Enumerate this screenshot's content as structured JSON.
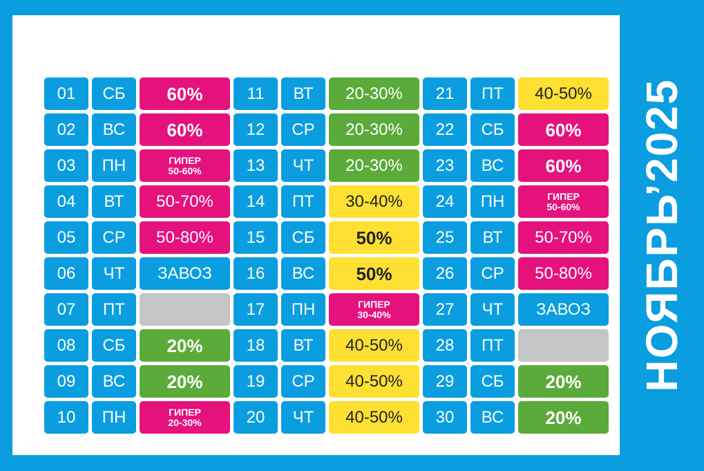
{
  "title": "НОЯБРЬ’2025",
  "colors": {
    "background": "#0a9ee0",
    "magenta": "#e5127d",
    "green": "#5aab3a",
    "yellow": "#fde031",
    "gray": "#c4c5c7"
  },
  "days": [
    {
      "date": "01",
      "weekday": "СБ",
      "discount": "60%",
      "type": "magenta-bold"
    },
    {
      "date": "02",
      "weekday": "ВС",
      "discount": "60%",
      "type": "magenta-bold"
    },
    {
      "date": "03",
      "weekday": "ПН",
      "discount": "ГИПЕР 50-60%",
      "type": "hyper"
    },
    {
      "date": "04",
      "weekday": "ВТ",
      "discount": "50-70%",
      "type": "magenta"
    },
    {
      "date": "05",
      "weekday": "СР",
      "discount": "50-80%",
      "type": "magenta"
    },
    {
      "date": "06",
      "weekday": "ЧТ",
      "discount": "ЗАВОЗ",
      "type": "blue"
    },
    {
      "date": "07",
      "weekday": "ПТ",
      "discount": "",
      "type": "gray"
    },
    {
      "date": "08",
      "weekday": "СБ",
      "discount": "20%",
      "type": "green-bold"
    },
    {
      "date": "09",
      "weekday": "ВС",
      "discount": "20%",
      "type": "green-bold"
    },
    {
      "date": "10",
      "weekday": "ПН",
      "discount": "ГИПЕР 20-30%",
      "type": "hyper"
    },
    {
      "date": "11",
      "weekday": "ВТ",
      "discount": "20-30%",
      "type": "green"
    },
    {
      "date": "12",
      "weekday": "СР",
      "discount": "20-30%",
      "type": "green"
    },
    {
      "date": "13",
      "weekday": "ЧТ",
      "discount": "20-30%",
      "type": "green"
    },
    {
      "date": "14",
      "weekday": "ПТ",
      "discount": "30-40%",
      "type": "yellow"
    },
    {
      "date": "15",
      "weekday": "СБ",
      "discount": "50%",
      "type": "yellow-bold"
    },
    {
      "date": "16",
      "weekday": "ВС",
      "discount": "50%",
      "type": "yellow-bold"
    },
    {
      "date": "17",
      "weekday": "ПН",
      "discount": "ГИПЕР 30-40%",
      "type": "hyper"
    },
    {
      "date": "18",
      "weekday": "ВТ",
      "discount": "40-50%",
      "type": "yellow"
    },
    {
      "date": "19",
      "weekday": "СР",
      "discount": "40-50%",
      "type": "yellow"
    },
    {
      "date": "20",
      "weekday": "ЧТ",
      "discount": "40-50%",
      "type": "yellow"
    },
    {
      "date": "21",
      "weekday": "ПТ",
      "discount": "40-50%",
      "type": "yellow"
    },
    {
      "date": "22",
      "weekday": "СБ",
      "discount": "60%",
      "type": "magenta-bold"
    },
    {
      "date": "23",
      "weekday": "ВС",
      "discount": "60%",
      "type": "magenta-bold"
    },
    {
      "date": "24",
      "weekday": "ПН",
      "discount": "ГИПЕР 50-60%",
      "type": "hyper"
    },
    {
      "date": "25",
      "weekday": "ВТ",
      "discount": "50-70%",
      "type": "magenta"
    },
    {
      "date": "26",
      "weekday": "СР",
      "discount": "50-80%",
      "type": "magenta"
    },
    {
      "date": "27",
      "weekday": "ЧТ",
      "discount": "ЗАВОЗ",
      "type": "blue"
    },
    {
      "date": "28",
      "weekday": "ПТ",
      "discount": "",
      "type": "gray"
    },
    {
      "date": "29",
      "weekday": "СБ",
      "discount": "20%",
      "type": "green-bold"
    },
    {
      "date": "30",
      "weekday": "ВС",
      "discount": "20%",
      "type": "green-bold"
    }
  ]
}
